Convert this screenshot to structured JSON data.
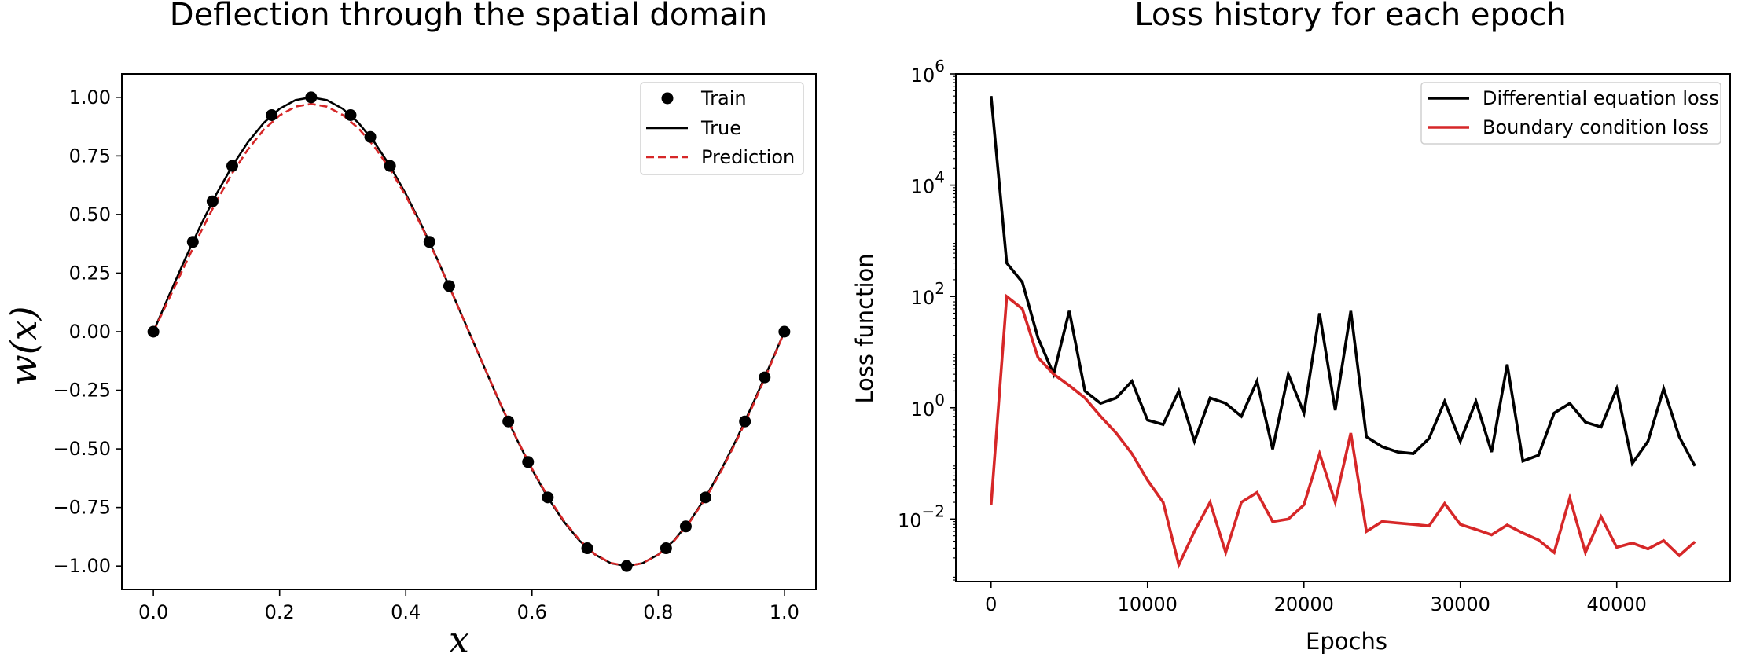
{
  "chart_data": [
    {
      "type": "line",
      "title": "Deflection through the spatial domain",
      "xlabel": "x",
      "ylabel": "w(x)",
      "xlim": [
        -0.05,
        1.05
      ],
      "ylim": [
        -1.1,
        1.1
      ],
      "xticks": [
        0.0,
        0.2,
        0.4,
        0.6,
        0.8,
        1.0
      ],
      "xtick_labels": [
        "0.0",
        "0.2",
        "0.4",
        "0.6",
        "0.8",
        "1.0"
      ],
      "yticks": [
        1.0,
        0.75,
        0.5,
        0.25,
        0.0,
        -0.25,
        -0.5,
        -0.75,
        -1.0
      ],
      "ytick_labels": [
        "1.00",
        "0.75",
        "0.50",
        "0.25",
        "0.00",
        "−0.25",
        "−0.50",
        "−0.75",
        "−1.00"
      ],
      "grid": false,
      "legend_position": "upper right",
      "series": [
        {
          "name": "Train",
          "kind": "scatter",
          "color": "#000000",
          "x": [
            0.0,
            0.0625,
            0.09375,
            0.125,
            0.1875,
            0.25,
            0.3125,
            0.34375,
            0.375,
            0.4375,
            0.46875,
            0.5625,
            0.59375,
            0.625,
            0.6875,
            0.75,
            0.8125,
            0.84375,
            0.875,
            0.9375,
            0.96875,
            1.0
          ],
          "y": [
            0.0,
            0.383,
            0.556,
            0.707,
            0.924,
            1.0,
            0.924,
            0.831,
            0.707,
            0.383,
            0.195,
            -0.383,
            -0.556,
            -0.707,
            -0.924,
            -1.0,
            -0.924,
            -0.831,
            -0.707,
            -0.383,
            -0.195,
            0.0
          ]
        },
        {
          "name": "True",
          "kind": "line",
          "color": "#000000",
          "style": "solid",
          "x": [
            0.0,
            0.025,
            0.05,
            0.075,
            0.1,
            0.125,
            0.15,
            0.175,
            0.2,
            0.225,
            0.25,
            0.275,
            0.3,
            0.325,
            0.35,
            0.375,
            0.4,
            0.425,
            0.45,
            0.475,
            0.5,
            0.525,
            0.55,
            0.575,
            0.6,
            0.625,
            0.65,
            0.675,
            0.7,
            0.725,
            0.75,
            0.775,
            0.8,
            0.825,
            0.85,
            0.875,
            0.9,
            0.925,
            0.95,
            0.975,
            1.0
          ],
          "y": [
            0.0,
            0.156,
            0.309,
            0.454,
            0.588,
            0.707,
            0.809,
            0.891,
            0.951,
            0.988,
            1.0,
            0.988,
            0.951,
            0.891,
            0.809,
            0.707,
            0.588,
            0.454,
            0.309,
            0.156,
            0.0,
            -0.156,
            -0.309,
            -0.454,
            -0.588,
            -0.707,
            -0.809,
            -0.891,
            -0.951,
            -0.988,
            -1.0,
            -0.988,
            -0.951,
            -0.891,
            -0.809,
            -0.707,
            -0.588,
            -0.454,
            -0.309,
            -0.156,
            0.0
          ]
        },
        {
          "name": "Prediction",
          "kind": "line",
          "color": "#d62728",
          "style": "dashed",
          "x": [
            0.0,
            0.025,
            0.05,
            0.075,
            0.1,
            0.125,
            0.15,
            0.175,
            0.2,
            0.225,
            0.25,
            0.275,
            0.3,
            0.325,
            0.35,
            0.375,
            0.4,
            0.425,
            0.45,
            0.475,
            0.5,
            0.525,
            0.55,
            0.575,
            0.6,
            0.625,
            0.65,
            0.675,
            0.7,
            0.725,
            0.75,
            0.775,
            0.8,
            0.825,
            0.85,
            0.875,
            0.9,
            0.925,
            0.95,
            0.975,
            1.0
          ],
          "y": [
            0.0,
            0.142,
            0.285,
            0.425,
            0.557,
            0.676,
            0.778,
            0.862,
            0.923,
            0.96,
            0.972,
            0.96,
            0.925,
            0.868,
            0.79,
            0.693,
            0.58,
            0.45,
            0.307,
            0.155,
            0.0,
            -0.155,
            -0.307,
            -0.452,
            -0.585,
            -0.703,
            -0.805,
            -0.888,
            -0.95,
            -0.987,
            -1.0,
            -0.988,
            -0.952,
            -0.893,
            -0.812,
            -0.712,
            -0.594,
            -0.461,
            -0.316,
            -0.162,
            0.0
          ]
        }
      ]
    },
    {
      "type": "line",
      "title": "Loss history for each epoch",
      "xlabel": "Epochs",
      "ylabel": "Loss function",
      "yscale": "log",
      "xlim": [
        -2250,
        47250
      ],
      "ylim": [
        0.00075,
        1000000
      ],
      "xticks": [
        0,
        10000,
        20000,
        30000,
        40000
      ],
      "xtick_labels": [
        "0",
        "10000",
        "20000",
        "30000",
        "40000"
      ],
      "yticks": [
        0.01,
        1,
        100,
        10000,
        1000000
      ],
      "ytick_labels": [
        {
          "base": "10",
          "exp": "−2"
        },
        {
          "base": "10",
          "exp": "0"
        },
        {
          "base": "10",
          "exp": "2"
        },
        {
          "base": "10",
          "exp": "4"
        },
        {
          "base": "10",
          "exp": "6"
        }
      ],
      "grid": false,
      "legend_position": "upper right",
      "x": [
        0,
        1000,
        2000,
        3000,
        4000,
        5000,
        6000,
        7000,
        8000,
        9000,
        10000,
        11000,
        12000,
        13000,
        14000,
        15000,
        16000,
        17000,
        18000,
        19000,
        20000,
        21000,
        22000,
        23000,
        24000,
        25000,
        26000,
        27000,
        28000,
        29000,
        30000,
        31000,
        32000,
        33000,
        34000,
        35000,
        36000,
        37000,
        38000,
        39000,
        40000,
        41000,
        42000,
        43000,
        44000,
        45000
      ],
      "series": [
        {
          "name": "Differential equation loss",
          "color": "#000000",
          "values": [
            400000,
            400,
            180,
            18,
            4,
            55,
            2,
            1.2,
            1.5,
            3,
            0.6,
            0.5,
            2,
            0.25,
            1.5,
            1.2,
            0.7,
            3,
            0.18,
            4,
            0.8,
            50,
            0.9,
            55,
            0.3,
            0.2,
            0.16,
            0.15,
            0.28,
            1.3,
            0.25,
            1.3,
            0.16,
            6,
            0.11,
            0.14,
            0.8,
            1.2,
            0.55,
            0.45,
            2.2,
            0.1,
            0.25,
            2.2,
            0.3,
            0.09
          ]
        },
        {
          "name": "Boundary condition loss",
          "color": "#d62728",
          "values": [
            0.018,
            100,
            60,
            8,
            4,
            2.5,
            1.5,
            0.7,
            0.35,
            0.15,
            0.05,
            0.02,
            0.0015,
            0.006,
            0.02,
            0.0025,
            0.02,
            0.03,
            0.009,
            0.01,
            0.018,
            0.15,
            0.02,
            0.35,
            0.006,
            0.009,
            0.0085,
            0.008,
            0.0075,
            0.019,
            0.008,
            0.0065,
            0.0052,
            0.0078,
            0.0056,
            0.0042,
            0.0025,
            0.024,
            0.0025,
            0.011,
            0.0031,
            0.0037,
            0.0029,
            0.0041,
            0.0022,
            0.0039
          ]
        }
      ]
    }
  ]
}
